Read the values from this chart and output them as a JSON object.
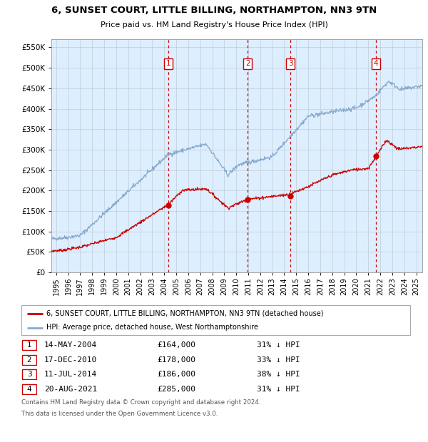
{
  "title": "6, SUNSET COURT, LITTLE BILLING, NORTHAMPTON, NN3 9TN",
  "subtitle": "Price paid vs. HM Land Registry's House Price Index (HPI)",
  "legend_line1": "6, SUNSET COURT, LITTLE BILLING, NORTHAMPTON, NN3 9TN (detached house)",
  "legend_line2": "HPI: Average price, detached house, West Northamptonshire",
  "footer1": "Contains HM Land Registry data © Crown copyright and database right 2024.",
  "footer2": "This data is licensed under the Open Government Licence v3.0.",
  "sales": [
    {
      "num": 1,
      "date_str": "14-MAY-2004",
      "date_x": 2004.37,
      "price": 164000,
      "pct": "31% ↓ HPI"
    },
    {
      "num": 2,
      "date_str": "17-DEC-2010",
      "date_x": 2010.96,
      "price": 178000,
      "pct": "33% ↓ HPI"
    },
    {
      "num": 3,
      "date_str": "11-JUL-2014",
      "date_x": 2014.53,
      "price": 186000,
      "pct": "38% ↓ HPI"
    },
    {
      "num": 4,
      "date_str": "20-AUG-2021",
      "date_x": 2021.64,
      "price": 285000,
      "pct": "31% ↓ HPI"
    }
  ],
  "ylim": [
    0,
    570000
  ],
  "xlim": [
    1994.6,
    2025.5
  ],
  "yticks": [
    0,
    50000,
    100000,
    150000,
    200000,
    250000,
    300000,
    350000,
    400000,
    450000,
    500000,
    550000
  ],
  "ytick_labels": [
    "£0",
    "£50K",
    "£100K",
    "£150K",
    "£200K",
    "£250K",
    "£300K",
    "£350K",
    "£400K",
    "£450K",
    "£500K",
    "£550K"
  ],
  "red_color": "#cc0000",
  "blue_color": "#88aacc",
  "bg_color": "#ddeeff",
  "grid_color": "#c0ccd8",
  "vline_color": "#cc0000",
  "table_rows": [
    [
      "1",
      "14-MAY-2004",
      "£164,000",
      "31% ↓ HPI"
    ],
    [
      "2",
      "17-DEC-2010",
      "£178,000",
      "33% ↓ HPI"
    ],
    [
      "3",
      "11-JUL-2014",
      "£186,000",
      "38% ↓ HPI"
    ],
    [
      "4",
      "20-AUG-2021",
      "£285,000",
      "31% ↓ HPI"
    ]
  ]
}
